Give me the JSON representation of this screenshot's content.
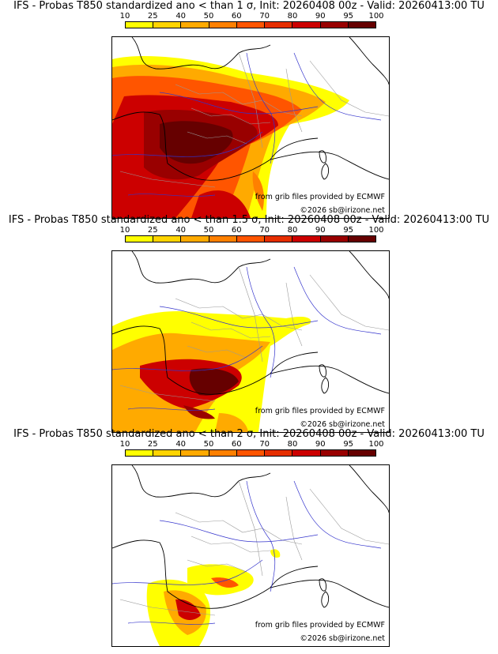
{
  "colors": {
    "scale": [
      "#ffff00",
      "#ffd400",
      "#ffaa00",
      "#ff8000",
      "#ff5500",
      "#e62e00",
      "#cc0000",
      "#990000",
      "#660000"
    ]
  },
  "colorbar": {
    "ticks": [
      "10",
      "25",
      "40",
      "50",
      "60",
      "70",
      "80",
      "90",
      "95",
      "100"
    ]
  },
  "credits": {
    "source": "from grib files provided by ECMWF",
    "copyright": "©2026 sb@irizone.net"
  },
  "panels": [
    {
      "title": "IFS - Probas T850  standardized ano < than 1 σ, Init: 20260408 00z - Valid: 20260413:00 TU"
    },
    {
      "title": "IFS - Probas T850  standardized ano < than 1.5 σ, Init: 20260408 00z - Valid: 20260413:00 TU"
    },
    {
      "title": "IFS - Probas T850  standardized ano < than 2 σ, Init: 20260408 00z - Valid: 20260413:00 TU"
    }
  ]
}
